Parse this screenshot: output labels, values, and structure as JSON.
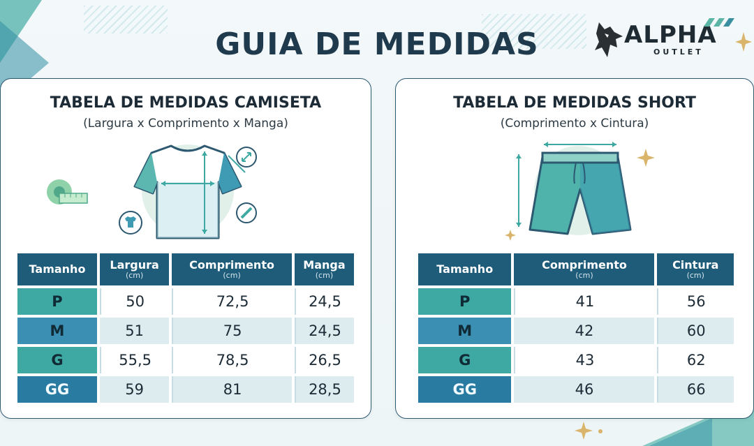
{
  "header": {
    "title": "GUIA DE MEDIDAS",
    "logo_name": "ALPHA",
    "logo_sub": "OUTLET"
  },
  "shirt_table": {
    "title": "TABELA DE MEDIDAS CAMISETA",
    "subtitle": "(Largura x Comprimento x Manga)",
    "columns": [
      {
        "label": "Tamanho",
        "unit": ""
      },
      {
        "label": "Largura",
        "unit": "(cm)"
      },
      {
        "label": "Comprimento",
        "unit": "(cm)"
      },
      {
        "label": "Manga",
        "unit": "(cm)"
      }
    ],
    "rows": [
      [
        "P",
        "50",
        "72,5",
        "24,5"
      ],
      [
        "M",
        "51",
        "75",
        "24,5"
      ],
      [
        "G",
        "55,5",
        "78,5",
        "26,5"
      ],
      [
        "GG",
        "59",
        "81",
        "28,5"
      ]
    ]
  },
  "short_table": {
    "title": "TABELA DE MEDIDAS SHORT",
    "subtitle": "(Comprimento x Cintura)",
    "columns": [
      {
        "label": "Tamanho",
        "unit": ""
      },
      {
        "label": "Comprimento",
        "unit": "(cm)"
      },
      {
        "label": "Cintura",
        "unit": "(cm)"
      }
    ],
    "rows": [
      [
        "P",
        "41",
        "56"
      ],
      [
        "M",
        "42",
        "60"
      ],
      [
        "G",
        "43",
        "62"
      ],
      [
        "GG",
        "46",
        "66"
      ]
    ]
  },
  "icons": [
    "wolf-logo-icon",
    "tshirt-icon",
    "measuring-tape-icon",
    "shorts-icon",
    "resize-arrows-icon",
    "ruler-icon",
    "sparkle-icon"
  ],
  "colors": {
    "header_bg": "#1f5c7a",
    "teal": "#3ea9a3",
    "blue": "#2f8db0",
    "title_text": "#1f3a4d"
  }
}
